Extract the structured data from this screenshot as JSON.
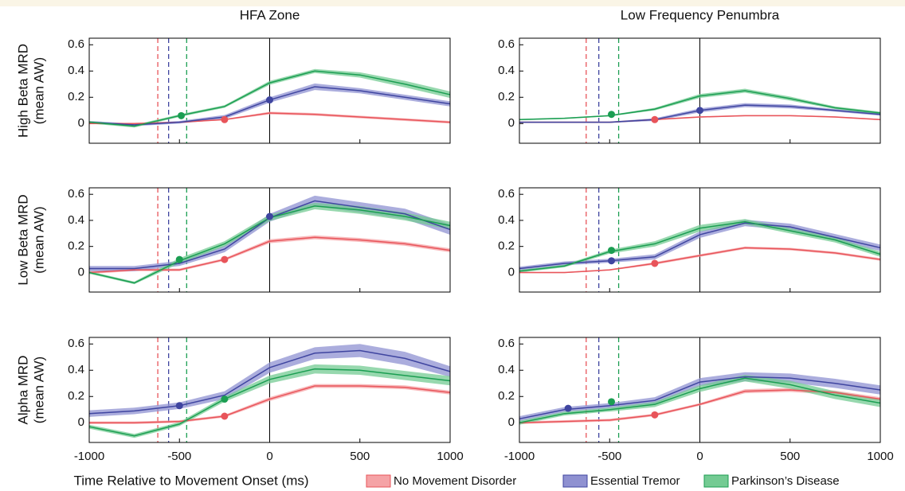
{
  "column_titles": [
    "HFA Zone",
    "Low Frequency Penumbra"
  ],
  "row_labels": [
    [
      "High Beta MRD",
      "(mean AW)"
    ],
    [
      "Low Beta MRD",
      "(mean AW)"
    ],
    [
      "Alpha MRD",
      "(mean AW)"
    ]
  ],
  "x_label": "Time Relative to Movement Onset (ms)",
  "chart_data": [
    {
      "type": "line",
      "x": [
        -1000,
        -750,
        -500,
        -250,
        0,
        250,
        500,
        750,
        1000
      ],
      "xlim": [
        -1000,
        1000
      ],
      "xticks": [
        -1000,
        -500,
        0,
        500,
        1000
      ],
      "ylim": [
        -0.15,
        0.65
      ],
      "yticks": [
        0,
        0.2,
        0.4,
        0.6
      ],
      "reference_x": 0,
      "series": [
        {
          "name": "No Movement Disorder",
          "color": "#e8545a",
          "band_color": "#f5a3a6",
          "values": [
            0,
            0,
            0.01,
            0.03,
            0.08,
            0.07,
            0.05,
            0.03,
            0.01
          ],
          "error": [
            0.005,
            0.005,
            0.005,
            0.005,
            0.01,
            0.01,
            0.01,
            0.01,
            0.01
          ],
          "threshold": -620,
          "dot": [
            -250,
            0.03
          ]
        },
        {
          "name": "Essential Tremor",
          "color": "#3f45a0",
          "band_color": "#8f91d1",
          "values": [
            0.01,
            -0.01,
            0.01,
            0.05,
            0.18,
            0.28,
            0.25,
            0.2,
            0.15
          ],
          "error": [
            0.01,
            0.01,
            0.01,
            0.015,
            0.02,
            0.025,
            0.02,
            0.02,
            0.02
          ],
          "threshold": -560,
          "dot": [
            0,
            0.18
          ]
        },
        {
          "name": "Parkinson’s Disease",
          "color": "#1b9e52",
          "band_color": "#74cb93",
          "values": [
            0.01,
            -0.02,
            0.06,
            0.13,
            0.31,
            0.4,
            0.37,
            0.3,
            0.22
          ],
          "error": [
            0.01,
            0.01,
            0.01,
            0.01,
            0.015,
            0.015,
            0.02,
            0.025,
            0.025
          ],
          "threshold": -460,
          "dot": [
            -490,
            0.06
          ]
        }
      ]
    },
    {
      "type": "line",
      "x": [
        -1000,
        -750,
        -500,
        -250,
        0,
        250,
        500,
        750,
        1000
      ],
      "xlim": [
        -1000,
        1000
      ],
      "xticks": [
        -1000,
        -500,
        0,
        500,
        1000
      ],
      "ylim": [
        -0.15,
        0.65
      ],
      "yticks": [
        0,
        0.2,
        0.4,
        0.6
      ],
      "reference_x": 0,
      "series": [
        {
          "name": "No Movement Disorder",
          "color": "#e8545a",
          "band_color": "#f5a3a6",
          "values": [
            0.01,
            0.01,
            0.01,
            0.03,
            0.05,
            0.06,
            0.06,
            0.05,
            0.03
          ],
          "error": [
            0.005,
            0.005,
            0.005,
            0.005,
            0.005,
            0.005,
            0.005,
            0.005,
            0.005
          ],
          "threshold": -630,
          "dot": [
            -250,
            0.03
          ]
        },
        {
          "name": "Essential Tremor",
          "color": "#3f45a0",
          "band_color": "#8f91d1",
          "values": [
            0.01,
            0.01,
            0.01,
            0.03,
            0.1,
            0.14,
            0.13,
            0.1,
            0.07
          ],
          "error": [
            0.005,
            0.005,
            0.005,
            0.01,
            0.015,
            0.015,
            0.015,
            0.01,
            0.01
          ],
          "threshold": -560,
          "dot": [
            0,
            0.1
          ]
        },
        {
          "name": "Parkinson’s Disease",
          "color": "#1b9e52",
          "band_color": "#74cb93",
          "values": [
            0.03,
            0.04,
            0.06,
            0.11,
            0.21,
            0.25,
            0.19,
            0.12,
            0.08
          ],
          "error": [
            0.005,
            0.005,
            0.005,
            0.01,
            0.015,
            0.015,
            0.015,
            0.01,
            0.01
          ],
          "threshold": -450,
          "dot": [
            -490,
            0.07
          ]
        }
      ]
    },
    {
      "type": "line",
      "x": [
        -1000,
        -750,
        -500,
        -250,
        0,
        250,
        500,
        750,
        1000
      ],
      "xlim": [
        -1000,
        1000
      ],
      "xticks": [
        -1000,
        -500,
        0,
        500,
        1000
      ],
      "ylim": [
        -0.15,
        0.65
      ],
      "yticks": [
        0,
        0.2,
        0.4,
        0.6
      ],
      "reference_x": 0,
      "series": [
        {
          "name": "No Movement Disorder",
          "color": "#e8545a",
          "band_color": "#f5a3a6",
          "values": [
            0,
            0.02,
            0.02,
            0.1,
            0.24,
            0.27,
            0.25,
            0.22,
            0.17
          ],
          "error": [
            0.01,
            0.01,
            0.01,
            0.01,
            0.015,
            0.015,
            0.015,
            0.015,
            0.015
          ],
          "threshold": -620,
          "dot": [
            -250,
            0.1
          ]
        },
        {
          "name": "Essential Tremor",
          "color": "#3f45a0",
          "band_color": "#8f91d1",
          "values": [
            0.03,
            0.03,
            0.07,
            0.18,
            0.42,
            0.55,
            0.5,
            0.45,
            0.33
          ],
          "error": [
            0.02,
            0.02,
            0.02,
            0.025,
            0.03,
            0.04,
            0.04,
            0.04,
            0.04
          ],
          "threshold": -560,
          "dot": [
            0,
            0.43
          ]
        },
        {
          "name": "Parkinson’s Disease",
          "color": "#1b9e52",
          "band_color": "#74cb93",
          "values": [
            0,
            -0.08,
            0.09,
            0.22,
            0.42,
            0.51,
            0.48,
            0.43,
            0.36
          ],
          "error": [
            0.01,
            0.01,
            0.02,
            0.02,
            0.025,
            0.025,
            0.03,
            0.03,
            0.03
          ],
          "threshold": -460,
          "dot": [
            -500,
            0.1
          ]
        }
      ]
    },
    {
      "type": "line",
      "x": [
        -1000,
        -750,
        -500,
        -250,
        0,
        250,
        500,
        750,
        1000
      ],
      "xlim": [
        -1000,
        1000
      ],
      "xticks": [
        -1000,
        -500,
        0,
        500,
        1000
      ],
      "ylim": [
        -0.15,
        0.65
      ],
      "yticks": [
        0,
        0.2,
        0.4,
        0.6
      ],
      "reference_x": 0,
      "series": [
        {
          "name": "No Movement Disorder",
          "color": "#e8545a",
          "band_color": "#f5a3a6",
          "values": [
            0,
            0,
            0.02,
            0.07,
            0.13,
            0.19,
            0.18,
            0.15,
            0.1
          ],
          "error": [
            0.005,
            0.005,
            0.005,
            0.01,
            0.01,
            0.01,
            0.01,
            0.01,
            0.01
          ],
          "threshold": -630,
          "dot": [
            -250,
            0.07
          ]
        },
        {
          "name": "Essential Tremor",
          "color": "#3f45a0",
          "band_color": "#8f91d1",
          "values": [
            0.03,
            0.07,
            0.09,
            0.12,
            0.29,
            0.38,
            0.35,
            0.27,
            0.19
          ],
          "error": [
            0.015,
            0.015,
            0.015,
            0.02,
            0.025,
            0.025,
            0.025,
            0.025,
            0.025
          ],
          "threshold": -560,
          "dot": [
            -490,
            0.09
          ]
        },
        {
          "name": "Parkinson’s Disease",
          "color": "#1b9e52",
          "band_color": "#74cb93",
          "values": [
            0.01,
            0.05,
            0.16,
            0.22,
            0.34,
            0.39,
            0.32,
            0.25,
            0.14
          ],
          "error": [
            0.01,
            0.01,
            0.015,
            0.02,
            0.025,
            0.02,
            0.02,
            0.02,
            0.02
          ],
          "threshold": -450,
          "dot": [
            -490,
            0.17
          ]
        }
      ]
    },
    {
      "type": "line",
      "x": [
        -1000,
        -750,
        -500,
        -250,
        0,
        250,
        500,
        750,
        1000
      ],
      "xlim": [
        -1000,
        1000
      ],
      "xticks": [
        -1000,
        -500,
        0,
        500,
        1000
      ],
      "ylim": [
        -0.15,
        0.65
      ],
      "yticks": [
        0,
        0.2,
        0.4,
        0.6
      ],
      "reference_x": 0,
      "series": [
        {
          "name": "No Movement Disorder",
          "color": "#e8545a",
          "band_color": "#f5a3a6",
          "values": [
            0,
            0,
            0.01,
            0.05,
            0.18,
            0.28,
            0.28,
            0.27,
            0.23
          ],
          "error": [
            0.01,
            0.01,
            0.01,
            0.01,
            0.015,
            0.015,
            0.015,
            0.015,
            0.015
          ],
          "threshold": -620,
          "dot": [
            -250,
            0.05
          ]
        },
        {
          "name": "Essential Tremor",
          "color": "#3f45a0",
          "band_color": "#8f91d1",
          "values": [
            0.07,
            0.09,
            0.13,
            0.21,
            0.42,
            0.53,
            0.55,
            0.49,
            0.39
          ],
          "error": [
            0.025,
            0.025,
            0.025,
            0.03,
            0.04,
            0.045,
            0.05,
            0.05,
            0.04
          ],
          "threshold": -560,
          "dot": [
            -500,
            0.13
          ]
        },
        {
          "name": "Parkinson’s Disease",
          "color": "#1b9e52",
          "band_color": "#74cb93",
          "values": [
            -0.03,
            -0.1,
            -0.01,
            0.18,
            0.33,
            0.41,
            0.4,
            0.36,
            0.32
          ],
          "error": [
            0.015,
            0.015,
            0.015,
            0.02,
            0.03,
            0.035,
            0.035,
            0.035,
            0.035
          ],
          "threshold": -460,
          "dot": [
            -250,
            0.18
          ]
        }
      ]
    },
    {
      "type": "line",
      "x": [
        -1000,
        -750,
        -500,
        -250,
        0,
        250,
        500,
        750,
        1000
      ],
      "xlim": [
        -1000,
        1000
      ],
      "xticks": [
        -1000,
        -500,
        0,
        500,
        1000
      ],
      "ylim": [
        -0.15,
        0.65
      ],
      "yticks": [
        0,
        0.2,
        0.4,
        0.6
      ],
      "reference_x": 0,
      "series": [
        {
          "name": "No Movement Disorder",
          "color": "#e8545a",
          "band_color": "#f5a3a6",
          "values": [
            0,
            0.01,
            0.02,
            0.06,
            0.14,
            0.24,
            0.25,
            0.23,
            0.18
          ],
          "error": [
            0.01,
            0.01,
            0.01,
            0.01,
            0.01,
            0.015,
            0.015,
            0.015,
            0.015
          ],
          "threshold": -630,
          "dot": [
            -250,
            0.06
          ]
        },
        {
          "name": "Essential Tremor",
          "color": "#3f45a0",
          "band_color": "#8f91d1",
          "values": [
            0.03,
            0.1,
            0.13,
            0.17,
            0.31,
            0.35,
            0.34,
            0.3,
            0.25
          ],
          "error": [
            0.02,
            0.02,
            0.02,
            0.025,
            0.03,
            0.035,
            0.035,
            0.035,
            0.035
          ],
          "threshold": -560,
          "dot": [
            -730,
            0.11
          ]
        },
        {
          "name": "Parkinson’s Disease",
          "color": "#1b9e52",
          "band_color": "#74cb93",
          "values": [
            0,
            0.07,
            0.1,
            0.14,
            0.26,
            0.34,
            0.29,
            0.21,
            0.15
          ],
          "error": [
            0.015,
            0.015,
            0.015,
            0.02,
            0.025,
            0.025,
            0.03,
            0.03,
            0.03
          ],
          "threshold": -450,
          "dot": [
            -490,
            0.16
          ]
        }
      ]
    }
  ]
}
